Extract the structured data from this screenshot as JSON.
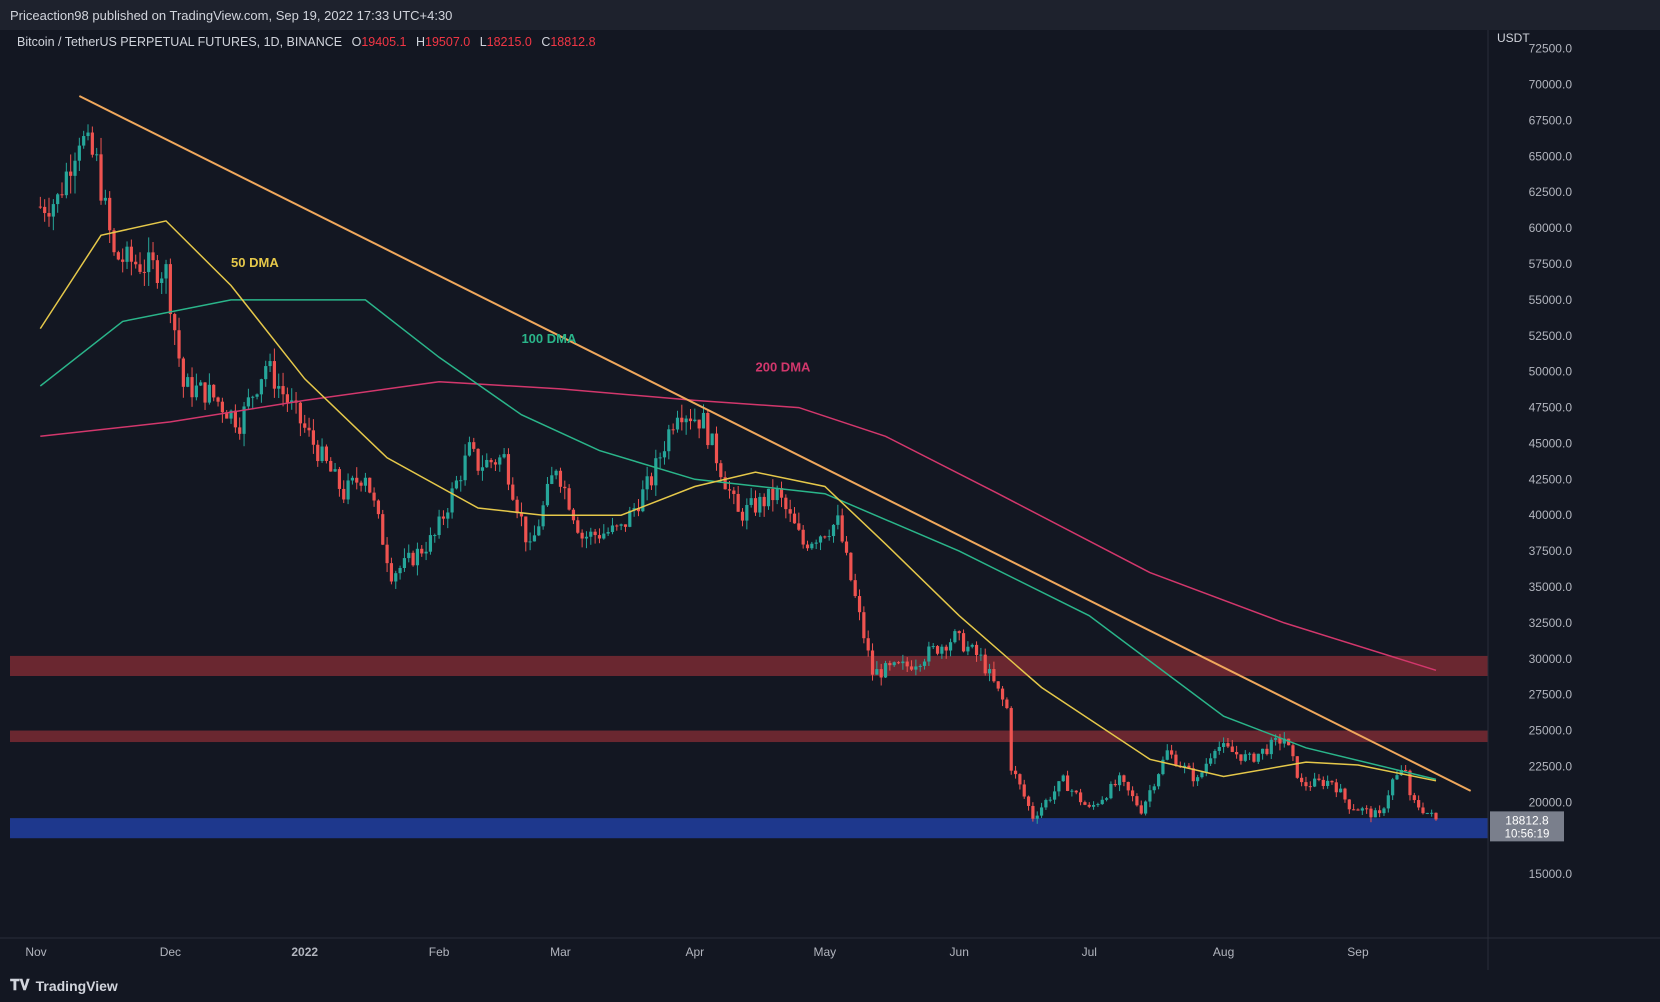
{
  "header": {
    "publisher": "Priceaction98 published on TradingView.com, Sep 19, 2022 17:33 UTC+4:30"
  },
  "symbol": {
    "name": "Bitcoin / TetherUS PERPETUAL FUTURES, 1D, BINANCE",
    "open_label": "O",
    "open": "19405.1",
    "high_label": "H",
    "high": "19507.0",
    "low_label": "L",
    "low": "18215.0",
    "close_label": "C",
    "close": "18812.8"
  },
  "footer": {
    "brand": "TradingView",
    "logo_icon": "tradingview-logo-icon"
  },
  "colors": {
    "background": "#131722",
    "bull": "#26a69a",
    "bear": "#ef5350",
    "dma50": "#e5c84a",
    "dma100": "#2ab58a",
    "dma200": "#d2376c",
    "trendline": "#f0a85c",
    "resistance": "#7a2a33",
    "support": "#1f3a93"
  },
  "chart_data": {
    "type": "candlestick",
    "title": "",
    "currency": "USDT",
    "y_ticks": [
      "72500.0",
      "70000.0",
      "67500.0",
      "65000.0",
      "62500.0",
      "60000.0",
      "57500.0",
      "55000.0",
      "52500.0",
      "50000.0",
      "47500.0",
      "45000.0",
      "42500.0",
      "40000.0",
      "37500.0",
      "35000.0",
      "32500.0",
      "30000.0",
      "27500.0",
      "25000.0",
      "22500.0",
      "20000.0",
      "15000.0"
    ],
    "x_ticks": [
      "Nov",
      "Dec",
      "2022",
      "Feb",
      "Mar",
      "Apr",
      "May",
      "Jun",
      "Jul",
      "Aug",
      "Sep"
    ],
    "ylim": [
      12500,
      73800
    ],
    "last_price": "18812.8",
    "countdown": "10:56:19",
    "price_path": [
      {
        "date": "2021-11-01",
        "price": 61500
      },
      {
        "date": "2021-11-05",
        "price": 62000
      },
      {
        "date": "2021-11-10",
        "price": 66500
      },
      {
        "date": "2021-11-14",
        "price": 64500
      },
      {
        "date": "2021-11-18",
        "price": 58000
      },
      {
        "date": "2021-11-24",
        "price": 57500
      },
      {
        "date": "2021-11-30",
        "price": 57000
      },
      {
        "date": "2021-12-04",
        "price": 49000
      },
      {
        "date": "2021-12-10",
        "price": 48500
      },
      {
        "date": "2021-12-17",
        "price": 46500
      },
      {
        "date": "2021-12-23",
        "price": 50500
      },
      {
        "date": "2021-12-28",
        "price": 48000
      },
      {
        "date": "2022-01-05",
        "price": 44000
      },
      {
        "date": "2022-01-10",
        "price": 41500
      },
      {
        "date": "2022-01-15",
        "price": 43000
      },
      {
        "date": "2022-01-21",
        "price": 36000
      },
      {
        "date": "2022-01-24",
        "price": 36500
      },
      {
        "date": "2022-01-31",
        "price": 38500
      },
      {
        "date": "2022-02-08",
        "price": 44500
      },
      {
        "date": "2022-02-10",
        "price": 43500
      },
      {
        "date": "2022-02-16",
        "price": 44000
      },
      {
        "date": "2022-02-22",
        "price": 37500
      },
      {
        "date": "2022-02-28",
        "price": 43500
      },
      {
        "date": "2022-03-06",
        "price": 38500
      },
      {
        "date": "2022-03-15",
        "price": 39000
      },
      {
        "date": "2022-03-22",
        "price": 42500
      },
      {
        "date": "2022-03-28",
        "price": 47500
      },
      {
        "date": "2022-04-03",
        "price": 46500
      },
      {
        "date": "2022-04-11",
        "price": 40000
      },
      {
        "date": "2022-04-20",
        "price": 41500
      },
      {
        "date": "2022-04-26",
        "price": 38000
      },
      {
        "date": "2022-05-04",
        "price": 39500
      },
      {
        "date": "2022-05-07",
        "price": 35500
      },
      {
        "date": "2022-05-12",
        "price": 29000
      },
      {
        "date": "2022-05-20",
        "price": 29500
      },
      {
        "date": "2022-05-31",
        "price": 31500
      },
      {
        "date": "2022-06-06",
        "price": 30000
      },
      {
        "date": "2022-06-12",
        "price": 26500
      },
      {
        "date": "2022-06-13",
        "price": 22500
      },
      {
        "date": "2022-06-18",
        "price": 19000
      },
      {
        "date": "2022-06-25",
        "price": 21500
      },
      {
        "date": "2022-07-01",
        "price": 19500
      },
      {
        "date": "2022-07-08",
        "price": 21500
      },
      {
        "date": "2022-07-13",
        "price": 19500
      },
      {
        "date": "2022-07-19",
        "price": 23500
      },
      {
        "date": "2022-07-26",
        "price": 21500
      },
      {
        "date": "2022-07-30",
        "price": 24000
      },
      {
        "date": "2022-08-07",
        "price": 23000
      },
      {
        "date": "2022-08-15",
        "price": 24500
      },
      {
        "date": "2022-08-19",
        "price": 21200
      },
      {
        "date": "2022-08-26",
        "price": 21500
      },
      {
        "date": "2022-08-30",
        "price": 19800
      },
      {
        "date": "2022-09-06",
        "price": 19000
      },
      {
        "date": "2022-09-09",
        "price": 21500
      },
      {
        "date": "2022-09-12",
        "price": 22300
      },
      {
        "date": "2022-09-13",
        "price": 20200
      },
      {
        "date": "2022-09-19",
        "price": 18812.8
      }
    ],
    "dma50": [
      {
        "date": "2021-11-01",
        "price": 53000
      },
      {
        "date": "2021-11-15",
        "price": 59500
      },
      {
        "date": "2021-11-30",
        "price": 60500
      },
      {
        "date": "2021-12-15",
        "price": 56000
      },
      {
        "date": "2022-01-01",
        "price": 49500
      },
      {
        "date": "2022-01-20",
        "price": 44000
      },
      {
        "date": "2022-02-10",
        "price": 40500
      },
      {
        "date": "2022-02-25",
        "price": 40000
      },
      {
        "date": "2022-03-15",
        "price": 40000
      },
      {
        "date": "2022-04-01",
        "price": 42000
      },
      {
        "date": "2022-04-15",
        "price": 43000
      },
      {
        "date": "2022-05-01",
        "price": 42000
      },
      {
        "date": "2022-05-15",
        "price": 38000
      },
      {
        "date": "2022-06-01",
        "price": 33000
      },
      {
        "date": "2022-06-20",
        "price": 28000
      },
      {
        "date": "2022-07-15",
        "price": 23000
      },
      {
        "date": "2022-08-01",
        "price": 21800
      },
      {
        "date": "2022-08-20",
        "price": 22800
      },
      {
        "date": "2022-09-01",
        "price": 22600
      },
      {
        "date": "2022-09-19",
        "price": 21500
      }
    ],
    "dma100": [
      {
        "date": "2021-11-01",
        "price": 49000
      },
      {
        "date": "2021-11-20",
        "price": 53500
      },
      {
        "date": "2021-12-15",
        "price": 55000
      },
      {
        "date": "2022-01-15",
        "price": 55000
      },
      {
        "date": "2022-02-01",
        "price": 51000
      },
      {
        "date": "2022-02-20",
        "price": 47000
      },
      {
        "date": "2022-03-10",
        "price": 44500
      },
      {
        "date": "2022-04-01",
        "price": 42500
      },
      {
        "date": "2022-05-01",
        "price": 41500
      },
      {
        "date": "2022-06-01",
        "price": 37500
      },
      {
        "date": "2022-07-01",
        "price": 33000
      },
      {
        "date": "2022-08-01",
        "price": 26000
      },
      {
        "date": "2022-08-20",
        "price": 23800
      },
      {
        "date": "2022-09-19",
        "price": 21600
      }
    ],
    "dma200": [
      {
        "date": "2021-11-01",
        "price": 45500
      },
      {
        "date": "2021-12-01",
        "price": 46500
      },
      {
        "date": "2022-01-01",
        "price": 48000
      },
      {
        "date": "2022-02-01",
        "price": 49300
      },
      {
        "date": "2022-03-01",
        "price": 48800
      },
      {
        "date": "2022-04-01",
        "price": 48000
      },
      {
        "date": "2022-04-25",
        "price": 47500
      },
      {
        "date": "2022-05-15",
        "price": 45500
      },
      {
        "date": "2022-06-10",
        "price": 41500
      },
      {
        "date": "2022-07-15",
        "price": 36000
      },
      {
        "date": "2022-08-15",
        "price": 32500
      },
      {
        "date": "2022-09-19",
        "price": 29200
      }
    ],
    "trendline": [
      {
        "date": "2021-11-10",
        "price": 69200
      },
      {
        "date": "2022-09-27",
        "price": 20800
      }
    ],
    "zones": [
      {
        "name": "resistance-high",
        "low": 28800,
        "high": 30200
      },
      {
        "name": "resistance-low",
        "low": 24200,
        "high": 25000
      },
      {
        "name": "support",
        "low": 17500,
        "high": 18900
      }
    ],
    "labels": [
      {
        "text": "50 DMA",
        "date": "2021-12-15",
        "price": 57300
      },
      {
        "text": "100 DMA",
        "date": "2022-02-20",
        "price": 52000
      },
      {
        "text": "200 DMA",
        "date": "2022-04-15",
        "price": 50000
      }
    ]
  }
}
